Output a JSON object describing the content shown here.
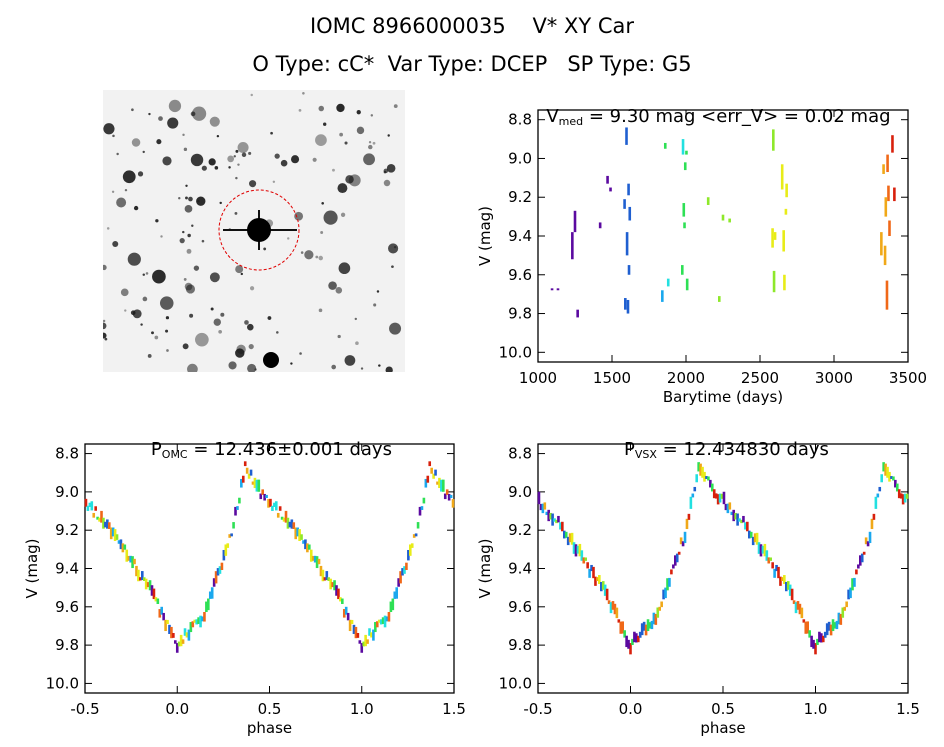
{
  "header": {
    "line1": "IOMC 8966000035    V* XY Car",
    "line2": "O Type: cC*  Var Type: DCEP   SP Type: G5"
  },
  "colors": {
    "axis": "#000000",
    "finder_circle": "#e00000",
    "finder_bg": "#f2f2f2",
    "star": "#1a1a1a",
    "rainbow": [
      "#5b0aa0",
      "#1f5fd0",
      "#1aa8ee",
      "#22e0e0",
      "#2ee055",
      "#8ee82a",
      "#e8ec18",
      "#f0a818",
      "#f06818",
      "#d8200c"
    ]
  },
  "finder": {
    "label": "finder chart image"
  },
  "chart_data": [
    {
      "id": "lightcurve",
      "type": "scatter",
      "title_prefix": "V",
      "title_sub": "med",
      "title_rest": " = 9.30 mag <err_V> = 0.02 mag",
      "xlabel": "Barytime (days)",
      "ylabel": "V (mag)",
      "xlim": [
        1000,
        3500
      ],
      "ylim": [
        10.05,
        8.75
      ],
      "xticks": [
        1000,
        1500,
        2000,
        2500,
        3000,
        3500
      ],
      "yticks": [
        8.8,
        9.0,
        9.2,
        9.4,
        9.6,
        9.8,
        10.0
      ],
      "grid": false,
      "segments": [
        {
          "x": 1095,
          "y1": 9.67,
          "y2": 9.68,
          "c": 0
        },
        {
          "x": 1135,
          "y1": 9.67,
          "y2": 9.68,
          "c": 0
        },
        {
          "x": 1232,
          "y1": 9.38,
          "y2": 9.52,
          "c": 0
        },
        {
          "x": 1250,
          "y1": 9.27,
          "y2": 9.38,
          "c": 0
        },
        {
          "x": 1268,
          "y1": 9.78,
          "y2": 9.82,
          "c": 0
        },
        {
          "x": 1420,
          "y1": 9.33,
          "y2": 9.36,
          "c": 0
        },
        {
          "x": 1470,
          "y1": 9.09,
          "y2": 9.13,
          "c": 0
        },
        {
          "x": 1490,
          "y1": 9.15,
          "y2": 9.17,
          "c": 0
        },
        {
          "x": 1585,
          "y1": 9.21,
          "y2": 9.26,
          "c": 1
        },
        {
          "x": 1590,
          "y1": 9.72,
          "y2": 9.78,
          "c": 1
        },
        {
          "x": 1598,
          "y1": 8.84,
          "y2": 8.93,
          "c": 1
        },
        {
          "x": 1602,
          "y1": 9.38,
          "y2": 9.5,
          "c": 1
        },
        {
          "x": 1608,
          "y1": 9.73,
          "y2": 9.8,
          "c": 1
        },
        {
          "x": 1612,
          "y1": 9.13,
          "y2": 9.19,
          "c": 1
        },
        {
          "x": 1615,
          "y1": 9.55,
          "y2": 9.6,
          "c": 1
        },
        {
          "x": 1620,
          "y1": 9.25,
          "y2": 9.32,
          "c": 1
        },
        {
          "x": 1840,
          "y1": 9.68,
          "y2": 9.74,
          "c": 2
        },
        {
          "x": 1860,
          "y1": 8.92,
          "y2": 8.95,
          "c": 4
        },
        {
          "x": 1880,
          "y1": 9.62,
          "y2": 9.66,
          "c": 3
        },
        {
          "x": 1975,
          "y1": 9.55,
          "y2": 9.6,
          "c": 4
        },
        {
          "x": 1980,
          "y1": 8.9,
          "y2": 8.98,
          "c": 3
        },
        {
          "x": 1985,
          "y1": 9.23,
          "y2": 9.3,
          "c": 4
        },
        {
          "x": 1990,
          "y1": 9.33,
          "y2": 9.36,
          "c": 4
        },
        {
          "x": 1995,
          "y1": 9.02,
          "y2": 9.06,
          "c": 4
        },
        {
          "x": 2003,
          "y1": 8.96,
          "y2": 8.98,
          "c": 4
        },
        {
          "x": 2008,
          "y1": 9.62,
          "y2": 9.68,
          "c": 4
        },
        {
          "x": 2150,
          "y1": 9.2,
          "y2": 9.24,
          "c": 5
        },
        {
          "x": 2225,
          "y1": 9.71,
          "y2": 9.74,
          "c": 5
        },
        {
          "x": 2250,
          "y1": 9.29,
          "y2": 9.32,
          "c": 5
        },
        {
          "x": 2295,
          "y1": 9.31,
          "y2": 9.33,
          "c": 5
        },
        {
          "x": 2585,
          "y1": 9.36,
          "y2": 9.46,
          "c": 6
        },
        {
          "x": 2590,
          "y1": 8.85,
          "y2": 8.96,
          "c": 5
        },
        {
          "x": 2595,
          "y1": 9.58,
          "y2": 9.69,
          "c": 5
        },
        {
          "x": 2602,
          "y1": 9.38,
          "y2": 9.42,
          "c": 6
        },
        {
          "x": 2650,
          "y1": 9.03,
          "y2": 9.16,
          "c": 6
        },
        {
          "x": 2660,
          "y1": 9.37,
          "y2": 9.48,
          "c": 6
        },
        {
          "x": 2665,
          "y1": 9.6,
          "y2": 9.68,
          "c": 6
        },
        {
          "x": 2675,
          "y1": 9.26,
          "y2": 9.29,
          "c": 6
        },
        {
          "x": 2680,
          "y1": 9.13,
          "y2": 9.2,
          "c": 6
        },
        {
          "x": 3320,
          "y1": 9.38,
          "y2": 9.5,
          "c": 7
        },
        {
          "x": 3335,
          "y1": 9.03,
          "y2": 9.08,
          "c": 7
        },
        {
          "x": 3345,
          "y1": 9.45,
          "y2": 9.55,
          "c": 7
        },
        {
          "x": 3350,
          "y1": 9.2,
          "y2": 9.3,
          "c": 7
        },
        {
          "x": 3358,
          "y1": 9.63,
          "y2": 9.78,
          "c": 8
        },
        {
          "x": 3362,
          "y1": 8.98,
          "y2": 9.07,
          "c": 8
        },
        {
          "x": 3368,
          "y1": 9.14,
          "y2": 9.22,
          "c": 8
        },
        {
          "x": 3375,
          "y1": 9.32,
          "y2": 9.4,
          "c": 8
        },
        {
          "x": 3395,
          "y1": 8.88,
          "y2": 8.97,
          "c": 9
        },
        {
          "x": 3408,
          "y1": 9.15,
          "y2": 9.22,
          "c": 9
        }
      ]
    },
    {
      "id": "phase_omc",
      "type": "scatter",
      "title_prefix": "P",
      "title_sub": "OMC",
      "title_rest": " = 12.436±0.001 days",
      "xlabel": "phase",
      "ylabel": "V (mag)",
      "xlim": [
        -0.5,
        1.5
      ],
      "ylim": [
        10.05,
        8.75
      ],
      "xticks": [
        -0.5,
        0.0,
        0.5,
        1.0,
        1.5
      ],
      "yticks": [
        8.8,
        9.0,
        9.2,
        9.4,
        9.6,
        9.8,
        10.0
      ],
      "grid": false,
      "curve": {
        "points": [
          [
            0.0,
            9.8
          ],
          [
            0.15,
            9.64
          ],
          [
            0.3,
            9.2
          ],
          [
            0.37,
            8.87
          ],
          [
            0.45,
            9.0
          ],
          [
            0.6,
            9.15
          ],
          [
            0.75,
            9.36
          ],
          [
            0.85,
            9.5
          ],
          [
            1.0,
            9.8
          ]
        ]
      }
    },
    {
      "id": "phase_vsx",
      "type": "scatter",
      "title_prefix": "P",
      "title_sub": "VSX",
      "title_rest": " = 12.434830 days",
      "xlabel": "phase",
      "ylabel": "V (mag)",
      "xlim": [
        -0.5,
        1.5
      ],
      "ylim": [
        10.05,
        8.75
      ],
      "xticks": [
        -0.5,
        0.0,
        0.5,
        1.0,
        1.5
      ],
      "yticks": [
        8.8,
        9.0,
        9.2,
        9.4,
        9.6,
        9.8,
        10.0
      ],
      "grid": false,
      "curve": {
        "points": [
          [
            0.0,
            9.8
          ],
          [
            0.15,
            9.64
          ],
          [
            0.3,
            9.2
          ],
          [
            0.37,
            8.87
          ],
          [
            0.45,
            9.0
          ],
          [
            0.6,
            9.15
          ],
          [
            0.75,
            9.36
          ],
          [
            0.85,
            9.5
          ],
          [
            1.0,
            9.8
          ]
        ]
      }
    }
  ]
}
